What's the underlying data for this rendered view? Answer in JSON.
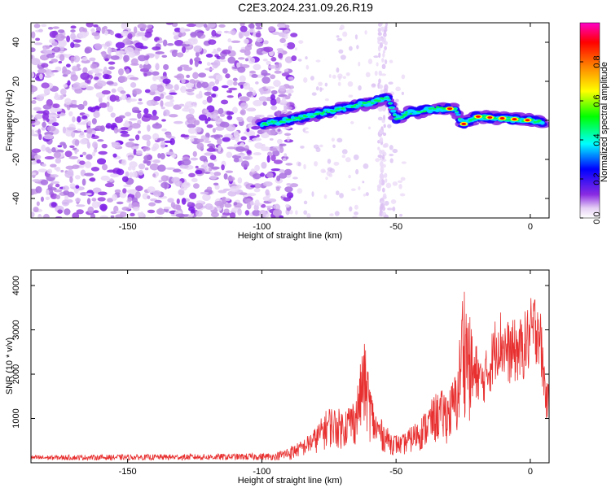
{
  "figure_title": "C2E3.2024.231.09.26.R19",
  "chart_data": [
    {
      "type": "heatmap",
      "xlabel": "Height of straight line (km)",
      "ylabel": "Frequency (Hz)",
      "xlim": [
        -186,
        7
      ],
      "ylim": [
        -50,
        50
      ],
      "x_ticks": [
        -150,
        -100,
        -50,
        0
      ],
      "y_ticks": [
        -40,
        -20,
        0,
        20,
        40
      ],
      "colorbar": {
        "label": "Normalized spectral amplitude",
        "range": [
          0,
          1
        ],
        "ticks": [
          0.0,
          0.2,
          0.4,
          0.6,
          0.8
        ],
        "tick_labels": [
          "0.0",
          "0.2",
          "0.4",
          "0.6",
          "0.8"
        ],
        "colors": [
          "#ffffff",
          "#e6d0f5",
          "#8a2be2",
          "#0000ff",
          "#00ffff",
          "#00ff00",
          "#ffff00",
          "#ff8000",
          "#ff0000",
          "#ff00ff"
        ]
      },
      "ridge": {
        "description_points": [
          {
            "x": -100,
            "y": -2
          },
          {
            "x": -90,
            "y": 0
          },
          {
            "x": -80,
            "y": 3
          },
          {
            "x": -70,
            "y": 6
          },
          {
            "x": -60,
            "y": 9
          },
          {
            "x": -53,
            "y": 12
          },
          {
            "x": -50,
            "y": 1
          },
          {
            "x": -45,
            "y": 4
          },
          {
            "x": -35,
            "y": 6
          },
          {
            "x": -28,
            "y": 6
          },
          {
            "x": -25,
            "y": -2
          },
          {
            "x": -20,
            "y": 2
          },
          {
            "x": -10,
            "y": 1
          },
          {
            "x": 0,
            "y": 0
          },
          {
            "x": 5,
            "y": -1
          }
        ]
      }
    },
    {
      "type": "line",
      "xlabel": "Height of straight line (km)",
      "ylabel": "SNR (10 * v/v)",
      "xlim": [
        -186,
        7
      ],
      "ylim": [
        0,
        4350
      ],
      "x_ticks": [
        -150,
        -100,
        -50,
        0
      ],
      "y_ticks": [
        1000,
        2000,
        3000,
        4000
      ],
      "series": [
        {
          "color": "#e83030",
          "envelope": [
            {
              "x": -186,
              "y": 150
            },
            {
              "x": -120,
              "y": 180
            },
            {
              "x": -95,
              "y": 200
            },
            {
              "x": -85,
              "y": 500
            },
            {
              "x": -80,
              "y": 800
            },
            {
              "x": -75,
              "y": 1300
            },
            {
              "x": -70,
              "y": 1200
            },
            {
              "x": -65,
              "y": 1500
            },
            {
              "x": -62,
              "y": 2800
            },
            {
              "x": -58,
              "y": 1200
            },
            {
              "x": -52,
              "y": 700
            },
            {
              "x": -48,
              "y": 600
            },
            {
              "x": -40,
              "y": 1100
            },
            {
              "x": -35,
              "y": 1600
            },
            {
              "x": -30,
              "y": 1700
            },
            {
              "x": -27,
              "y": 2200
            },
            {
              "x": -25,
              "y": 4300
            },
            {
              "x": -22,
              "y": 3100
            },
            {
              "x": -18,
              "y": 2300
            },
            {
              "x": -15,
              "y": 2800
            },
            {
              "x": -12,
              "y": 3600
            },
            {
              "x": -8,
              "y": 3200
            },
            {
              "x": -3,
              "y": 3300
            },
            {
              "x": 3,
              "y": 4100
            },
            {
              "x": 6,
              "y": 1800
            }
          ]
        }
      ]
    }
  ]
}
